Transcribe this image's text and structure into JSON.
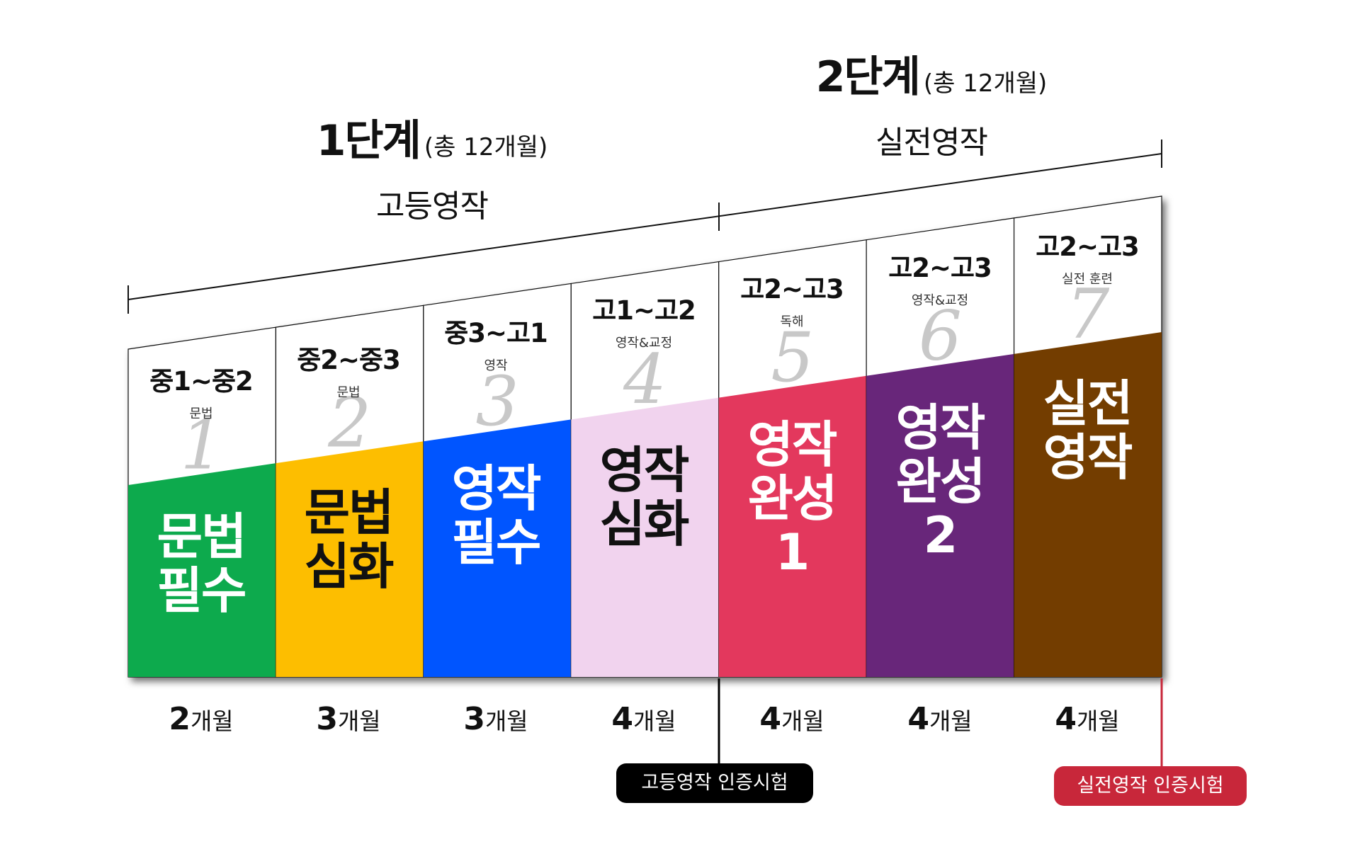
{
  "stages": [
    {
      "title": "1단계",
      "total": "(총 12개월)",
      "name": "고등영작"
    },
    {
      "title": "2단계",
      "total": "(총 12개월)",
      "name": "실전영작"
    }
  ],
  "steps": [
    {
      "number": "1",
      "grade": "중1~중2",
      "course": "문법",
      "title": [
        "문법",
        "필수"
      ],
      "color": "#0BAA4E",
      "text_color": "#FFFFFF",
      "months": "2",
      "unit": "개월"
    },
    {
      "number": "2",
      "grade": "중2~중3",
      "course": "문법",
      "title": [
        "문법",
        "심화"
      ],
      "color": "#FDBE00",
      "text_color": "#111111",
      "months": "3",
      "unit": "개월"
    },
    {
      "number": "3",
      "grade": "중3~고1",
      "course": "영작",
      "title": [
        "영작",
        "필수"
      ],
      "color": "#0054FF",
      "text_color": "#FFFFFF",
      "months": "3",
      "unit": "개월"
    },
    {
      "number": "4",
      "grade": "고1~고2",
      "course": "영작&교정",
      "title": [
        "영작",
        "심화"
      ],
      "color": "#F1D3EE",
      "text_color": "#111111",
      "months": "4",
      "unit": "개월"
    },
    {
      "number": "5",
      "grade": "고2~고3",
      "course": "독해",
      "title": [
        "영작",
        "완성",
        "1"
      ],
      "color": "#E3375D",
      "text_color": "#FFFFFF",
      "months": "4",
      "unit": "개월"
    },
    {
      "number": "6",
      "grade": "고2~고3",
      "course": "영작&교정",
      "title": [
        "영작",
        "완성",
        "2"
      ],
      "color": "#67257A",
      "text_color": "#FFFFFF",
      "months": "4",
      "unit": "개월"
    },
    {
      "number": "7",
      "grade": "고2~고3",
      "course": "실전 훈련",
      "title": [
        "실전",
        "영작"
      ],
      "color": "#733C03",
      "text_color": "#FFFFFF",
      "months": "4",
      "unit": "개월"
    }
  ],
  "exams": [
    {
      "label": "고등영작 인증시험",
      "color": "#000000"
    },
    {
      "label": "실전영작 인증시험",
      "color": "#C8273A"
    }
  ]
}
